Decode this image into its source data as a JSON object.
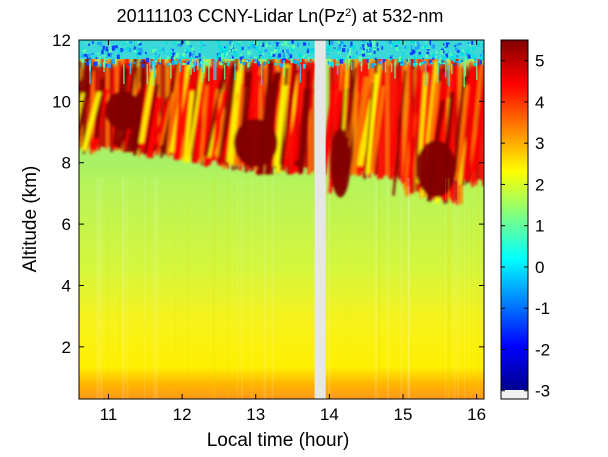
{
  "chart_data": {
    "type": "heatmap",
    "title": "20111103 CCNY-Lidar Ln(Pz^2) at 532-nm",
    "title_parts": {
      "prefix": "20111103 CCNY-Lidar Ln(Pz",
      "superscript": "2",
      "suffix": ") at 532-nm"
    },
    "xlabel": "Local time (hour)",
    "ylabel": "Altitude (km)",
    "xlim": [
      10.6,
      16.1
    ],
    "ylim": [
      0.3,
      12.0
    ],
    "x_ticks": [
      11,
      12,
      13,
      14,
      15,
      16
    ],
    "y_ticks": [
      2,
      4,
      6,
      8,
      10,
      12
    ],
    "data_gap_hours": [
      13.8,
      13.95
    ],
    "colorbar": {
      "range": [
        -3.2,
        5.5
      ],
      "ticks": [
        5,
        4,
        3,
        2,
        1,
        0,
        -1,
        -2,
        -3
      ],
      "colormap": "jet",
      "colors": [
        "#00008f",
        "#0000ff",
        "#0080ff",
        "#00ffff",
        "#80ff80",
        "#ffff00",
        "#ff8000",
        "#ff0000",
        "#800000"
      ]
    },
    "field_summary": [
      {
        "altitude_km": "0.3-1.0",
        "value": 3.2
      },
      {
        "altitude_km": "1.0-3.0",
        "value": 2.3
      },
      {
        "altitude_km": "3.0-7.5",
        "value": 1.6
      },
      {
        "altitude_km": "7.5-11.5",
        "value": 4.8,
        "note": "cirrus cloud layer"
      },
      {
        "altitude_km": "11.5-12",
        "value": 0.3
      }
    ]
  }
}
